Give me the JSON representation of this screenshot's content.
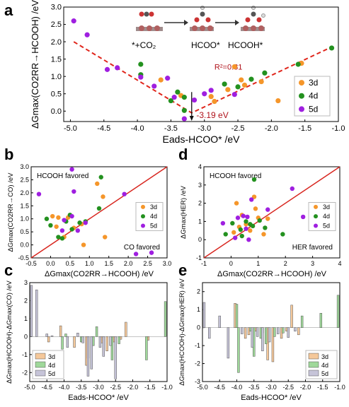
{
  "figure": {
    "panels": {
      "a": "a",
      "b": "b",
      "c": "c",
      "d": "d",
      "e": "e"
    }
  },
  "colors": {
    "3d": "#f5962a",
    "4d": "#23911f",
    "5d": "#9f1fe0",
    "fit_line": "#e0261c",
    "diag_line": "#d8261f",
    "bar3d": "#f5c89a",
    "bar4d": "#9fd89a",
    "bar5d": "#c6c4d8",
    "annotation": "#b0121b"
  },
  "chart_data": [
    {
      "id": "a",
      "type": "scatter",
      "xlabel": "Eads-HCOO* /eV",
      "ylabel": "ΔGmax(CO2RR→HCOOH) /eV",
      "xlim": [
        -5.1,
        -1.0
      ],
      "ylim": [
        -0.3,
        3.0
      ],
      "xticks": [
        -5.0,
        -4.5,
        -4.0,
        -3.5,
        -3.0,
        -2.5,
        -2.0,
        -1.5,
        -1.0
      ],
      "yticks": [
        0.0,
        0.5,
        1.0,
        1.5,
        2.0,
        2.5,
        3.0
      ],
      "ytick_labels": [
        "0.0",
        "0.5",
        "1.0",
        "1.5",
        "2.0",
        "2.5",
        "3.0"
      ],
      "xtick_labels": [
        "-5.0",
        "-4.5",
        "-4.0",
        "-3.5",
        "-3.0",
        "-2.5",
        "-2.0",
        "-1.5",
        "-1.0"
      ],
      "legend": [
        "3d",
        "4d",
        "5d"
      ],
      "legend_position": "bottom-right",
      "annotations": {
        "r2": "R²=0.81",
        "vertex": "-3.19 eV",
        "mech_1": "*+CO₂",
        "mech_2": "HCOO*",
        "mech_3": "HCOOH*"
      },
      "fit": {
        "vertex_x": -3.19,
        "vertex_y": -0.05,
        "left_end": [
          -4.95,
          2.0
        ],
        "right_end": [
          -1.1,
          1.85
        ]
      },
      "series": [
        {
          "name": "3d",
          "points": [
            [
              -2.55,
              1.28
            ],
            [
              -2.65,
              0.62
            ],
            [
              -2.9,
              0.42
            ],
            [
              -2.85,
              0.28
            ],
            [
              -1.55,
              1.38
            ],
            [
              -1.9,
              0.3
            ],
            [
              -2.4,
              0.75
            ],
            [
              -3.35,
              0.45
            ],
            [
              -3.65,
              0.9
            ],
            [
              -2.15,
              0.85
            ],
            [
              -2.45,
              0.9
            ]
          ]
        },
        {
          "name": "4d",
          "points": [
            [
              -3.95,
              1.35
            ],
            [
              -3.95,
              1.05
            ],
            [
              -3.4,
              0.55
            ],
            [
              -3.3,
              0.4
            ],
            [
              -3.3,
              0.02
            ],
            [
              -2.3,
              0.92
            ],
            [
              -2.1,
              1.1
            ],
            [
              -1.6,
              1.35
            ],
            [
              -1.1,
              1.82
            ],
            [
              -2.7,
              0.78
            ],
            [
              -2.5,
              0.7
            ],
            [
              -3.5,
              0.3
            ]
          ]
        },
        {
          "name": "5d",
          "points": [
            [
              -4.95,
              2.6
            ],
            [
              -4.75,
              2.2
            ],
            [
              -4.45,
              1.2
            ],
            [
              -4.3,
              1.25
            ],
            [
              -3.95,
              0.98
            ],
            [
              -3.75,
              0.72
            ],
            [
              -3.55,
              0.95
            ],
            [
              -3.3,
              -0.22
            ],
            [
              -3.15,
              0.32
            ],
            [
              -3.0,
              0.5
            ],
            [
              -2.9,
              0.6
            ],
            [
              -2.55,
              0.48
            ],
            [
              -3.45,
              0.4
            ]
          ]
        }
      ]
    },
    {
      "id": "b",
      "type": "scatter",
      "xlabel": "ΔGmax(CO2RR→HCOOH) /eV",
      "ylabel": "ΔGmax(CO2RR→CO) /eV",
      "xlim": [
        -0.5,
        3.0
      ],
      "ylim": [
        -0.5,
        3.0
      ],
      "xticks": [
        -0.5,
        0.0,
        0.5,
        1.0,
        1.5,
        2.0,
        2.5,
        3.0
      ],
      "yticks": [
        -0.5,
        0.0,
        0.5,
        1.0,
        1.5,
        2.0,
        2.5,
        3.0
      ],
      "xtick_labels": [
        "-0.5",
        "0.0",
        "0.5",
        "1.0",
        "1.5",
        "2.0",
        "2.5",
        "3.0"
      ],
      "ytick_labels": [
        "-0.5",
        "0.0",
        "0.5",
        "1.0",
        "1.5",
        "2.0",
        "2.5",
        "3.0"
      ],
      "legend": [
        "3d",
        "4d",
        "5d"
      ],
      "legend_position": "center-right",
      "annotations": {
        "upper": "HCOOH favored",
        "lower": "CO favored"
      },
      "series": [
        {
          "name": "3d",
          "points": [
            [
              0.05,
              1.1
            ],
            [
              0.15,
              0.7
            ],
            [
              0.35,
              0.3
            ],
            [
              0.6,
              0.65
            ],
            [
              0.8,
              0.8
            ],
            [
              1.2,
              2.35
            ],
            [
              1.35,
              1.85
            ],
            [
              1.4,
              0.3
            ],
            [
              0.85,
              0.0
            ],
            [
              0.2,
              1.05
            ],
            [
              0.45,
              1.05
            ]
          ]
        },
        {
          "name": "4d",
          "points": [
            [
              -0.1,
              1.0
            ],
            [
              0.0,
              0.75
            ],
            [
              0.3,
              0.25
            ],
            [
              0.4,
              0.9
            ],
            [
              0.5,
              1.15
            ],
            [
              0.9,
              0.9
            ],
            [
              1.25,
              1.4
            ],
            [
              1.3,
              2.6
            ],
            [
              0.75,
              0.85
            ],
            [
              0.55,
              0.6
            ],
            [
              0.2,
              0.3
            ]
          ]
        },
        {
          "name": "5d",
          "points": [
            [
              -0.3,
              1.95
            ],
            [
              0.55,
              2.9
            ],
            [
              0.6,
              2.05
            ],
            [
              0.3,
              0.55
            ],
            [
              0.7,
              0.55
            ],
            [
              0.55,
              1.1
            ],
            [
              0.9,
              0.85
            ],
            [
              1.9,
              1.95
            ],
            [
              2.2,
              -0.35
            ],
            [
              2.6,
              -0.3
            ],
            [
              0.35,
              0.95
            ]
          ]
        }
      ]
    },
    {
      "id": "d",
      "type": "scatter",
      "xlabel": "ΔGmax(CO2RR→HCOOH) /eV",
      "ylabel": "ΔGmax(HER) /eV",
      "xlim": [
        -1,
        4
      ],
      "ylim": [
        -1,
        4
      ],
      "xticks": [
        -1,
        0,
        1,
        2,
        3,
        4
      ],
      "yticks": [
        -1,
        0,
        1,
        2,
        3,
        4
      ],
      "xtick_labels": [
        "-1",
        "0",
        "1",
        "2",
        "3",
        "4"
      ],
      "ytick_labels": [
        "-1",
        "0",
        "1",
        "2",
        "3",
        "4"
      ],
      "legend": [
        "3d",
        "4d",
        "5d"
      ],
      "legend_position": "center-right",
      "annotations": {
        "upper": "HCOOH favored",
        "lower": "HER favored"
      },
      "series": [
        {
          "name": "3d",
          "points": [
            [
              0.2,
              2.0
            ],
            [
              0.4,
              1.35
            ],
            [
              0.55,
              0.85
            ],
            [
              0.7,
              0.5
            ],
            [
              0.9,
              1.7
            ],
            [
              1.2,
              0.3
            ],
            [
              1.35,
              1.15
            ],
            [
              0.1,
              0.4
            ],
            [
              0.3,
              0.7
            ],
            [
              0.85,
              2.35
            ],
            [
              1.0,
              1.2
            ]
          ]
        },
        {
          "name": "4d",
          "points": [
            [
              -0.2,
              0.3
            ],
            [
              0.05,
              0.9
            ],
            [
              0.35,
              0.55
            ],
            [
              0.55,
              1.0
            ],
            [
              0.8,
              0.75
            ],
            [
              0.85,
              3.3
            ],
            [
              1.05,
              1.05
            ],
            [
              1.25,
              0.65
            ],
            [
              1.9,
              0.3
            ],
            [
              0.4,
              0.2
            ],
            [
              0.7,
              0.85
            ]
          ]
        },
        {
          "name": "5d",
          "points": [
            [
              -0.3,
              0.9
            ],
            [
              0.25,
              1.2
            ],
            [
              0.45,
              1.3
            ],
            [
              0.6,
              1.25
            ],
            [
              0.55,
              0.6
            ],
            [
              0.75,
              2.2
            ],
            [
              1.35,
              1.65
            ],
            [
              2.25,
              2.8
            ],
            [
              2.65,
              1.25
            ],
            [
              0.15,
              0.1
            ],
            [
              0.65,
              0.0
            ]
          ]
        }
      ]
    },
    {
      "id": "c",
      "type": "bar",
      "xlabel": "Eads-HCOO* /eV",
      "ylabel": "ΔGmax(HCOOH)-ΔGmax(CO) /eV",
      "xlim": [
        -5.0,
        -1.0
      ],
      "ylim": [
        -2.5,
        3.0
      ],
      "xticks": [
        -5.0,
        -4.5,
        -4.0,
        -3.5,
        -3.0,
        -2.5,
        -2.0,
        -1.5,
        -1.0
      ],
      "yticks": [
        -2,
        -1,
        0,
        1,
        2,
        3
      ],
      "xtick_labels": [
        "-5.0",
        "-4.5",
        "-4.0",
        "-3.5",
        "-3.0",
        "-2.5",
        "-2.0",
        "-1.5",
        "-1.0"
      ],
      "ytick_labels": [
        "-2",
        "-1",
        "0",
        "1",
        "2",
        "3"
      ],
      "legend": [
        "3d",
        "4d",
        "5d"
      ],
      "legend_position": "bottom-left",
      "series": [
        {
          "name": "3d",
          "bars": [
            [
              -4.45,
              -0.3
            ],
            [
              -4.1,
              0.6
            ],
            [
              -3.7,
              -0.6
            ],
            [
              -3.35,
              -1.6
            ],
            [
              -3.15,
              -0.5
            ],
            [
              -2.9,
              -0.35
            ],
            [
              -2.75,
              -0.8
            ],
            [
              -2.55,
              -0.3
            ],
            [
              -2.2,
              0.8
            ],
            [
              -1.55,
              -0.2
            ],
            [
              -2.35,
              -0.15
            ]
          ]
        },
        {
          "name": "4d",
          "bars": [
            [
              -3.95,
              0.15
            ],
            [
              -3.5,
              -0.3
            ],
            [
              -3.3,
              -1.2
            ],
            [
              -3.05,
              0.55
            ],
            [
              -2.6,
              -1.3
            ],
            [
              -2.4,
              -0.4
            ],
            [
              -1.6,
              -1.3
            ],
            [
              -1.05,
              1.95
            ],
            [
              -2.85,
              -0.2
            ],
            [
              -3.15,
              -0.5
            ],
            [
              -4.05,
              -0.7
            ]
          ]
        },
        {
          "name": "5d",
          "bars": [
            [
              -4.95,
              2.85
            ],
            [
              -4.8,
              2.6
            ],
            [
              -4.5,
              0.15
            ],
            [
              -4.35,
              0.05
            ],
            [
              -3.9,
              -0.6
            ],
            [
              -3.6,
              0.2
            ],
            [
              -3.3,
              -2.2
            ],
            [
              -3.2,
              -1.8
            ],
            [
              -2.95,
              -0.6
            ],
            [
              -2.85,
              -1.1
            ],
            [
              -2.65,
              -0.5
            ],
            [
              -2.5,
              -2.35
            ],
            [
              -3.45,
              -0.35
            ]
          ]
        }
      ]
    },
    {
      "id": "e",
      "type": "bar",
      "xlabel": "Eads-HCOO* /eV",
      "ylabel": "ΔGmax(HCOOH)-ΔGmax(HER) /eV",
      "xlim": [
        -5.0,
        -1.0
      ],
      "ylim": [
        -3.0,
        2.5
      ],
      "xticks": [
        -5.0,
        -4.5,
        -4.0,
        -3.5,
        -3.0,
        -2.5,
        -2.0,
        -1.5,
        -1.0
      ],
      "yticks": [
        -3,
        -2,
        -1,
        0,
        1,
        2
      ],
      "xtick_labels": [
        "-5.0",
        "-4.5",
        "-4.0",
        "-3.5",
        "-3.0",
        "-2.5",
        "-2.0",
        "-1.5",
        "-1.0"
      ],
      "ytick_labels": [
        "-3",
        "-2",
        "-1",
        "0",
        "1",
        "2"
      ],
      "legend": [
        "3d",
        "4d",
        "5d"
      ],
      "legend_position": "bottom-right",
      "series": [
        {
          "name": "3d",
          "bars": [
            [
              -4.05,
              1.35
            ],
            [
              -3.75,
              -0.6
            ],
            [
              -3.45,
              -0.2
            ],
            [
              -3.1,
              -1.8
            ],
            [
              -2.95,
              -1.9
            ],
            [
              -2.7,
              -0.6
            ],
            [
              -2.4,
              1.25
            ],
            [
              -2.2,
              -0.4
            ],
            [
              -3.25,
              -0.3
            ],
            [
              -2.55,
              -0.2
            ],
            [
              -3.65,
              -0.4
            ]
          ]
        },
        {
          "name": "4d",
          "bars": [
            [
              -4.0,
              1.3
            ],
            [
              -3.95,
              -2.5
            ],
            [
              -3.5,
              -1.6
            ],
            [
              -3.3,
              -0.6
            ],
            [
              -3.15,
              -0.9
            ],
            [
              -2.9,
              -0.5
            ],
            [
              -2.1,
              0.65
            ],
            [
              -1.55,
              0.8
            ],
            [
              -1.05,
              1.8
            ],
            [
              -2.65,
              -0.3
            ],
            [
              -3.6,
              -0.2
            ]
          ]
        },
        {
          "name": "5d",
          "bars": [
            [
              -4.95,
              1.4
            ],
            [
              -4.8,
              -0.6
            ],
            [
              -4.5,
              0.65
            ],
            [
              -4.25,
              -1.7
            ],
            [
              -3.85,
              -0.35
            ],
            [
              -3.4,
              -0.5
            ],
            [
              -3.25,
              -1.3
            ],
            [
              -3.05,
              -0.8
            ],
            [
              -2.8,
              -0.35
            ],
            [
              -2.5,
              -0.55
            ],
            [
              -2.3,
              -0.2
            ],
            [
              -3.55,
              -1.1
            ]
          ]
        }
      ]
    }
  ]
}
